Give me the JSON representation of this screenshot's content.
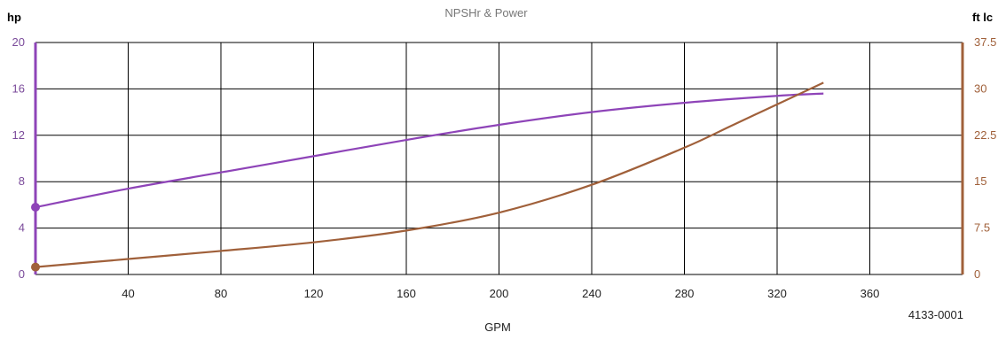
{
  "chart_data": {
    "type": "line",
    "title": "NPSHr & Power",
    "xlabel": "GPM",
    "ylabel_left": "hp",
    "ylabel_right": "ft lc",
    "figure_code": "4133-0001",
    "xlim": [
      0,
      400
    ],
    "x_ticks": [
      "40",
      "80",
      "120",
      "160",
      "200",
      "240",
      "280",
      "320",
      "360"
    ],
    "ylim_left": [
      0,
      20
    ],
    "y_left_ticks": [
      "0",
      "4",
      "8",
      "12",
      "16",
      "20"
    ],
    "ylim_right": [
      0,
      37.5
    ],
    "y_right_ticks": [
      "0",
      "7.5",
      "15",
      "22.5",
      "30",
      "37.5"
    ],
    "grid": true,
    "colors": {
      "power": "#8e44b8",
      "npshr": "#a0603a",
      "left_axis": "#8e44b8",
      "right_axis": "#a0603a",
      "grid": "#000000",
      "tick_left": "#7a4a9a",
      "tick_right": "#a0603a"
    },
    "series": [
      {
        "key": "power",
        "axis": "left",
        "x": [
          0,
          40,
          80,
          120,
          160,
          200,
          240,
          280,
          320,
          340
        ],
        "y": [
          5.8,
          7.4,
          8.8,
          10.2,
          11.6,
          12.9,
          14.0,
          14.8,
          15.4,
          15.6
        ]
      },
      {
        "key": "npshr",
        "axis": "right",
        "x": [
          0,
          40,
          80,
          120,
          160,
          200,
          240,
          280,
          300,
          320,
          340
        ],
        "y": [
          1.2,
          2.5,
          3.8,
          5.2,
          7.1,
          10.0,
          14.5,
          20.5,
          24.0,
          27.5,
          31.0
        ]
      }
    ]
  }
}
